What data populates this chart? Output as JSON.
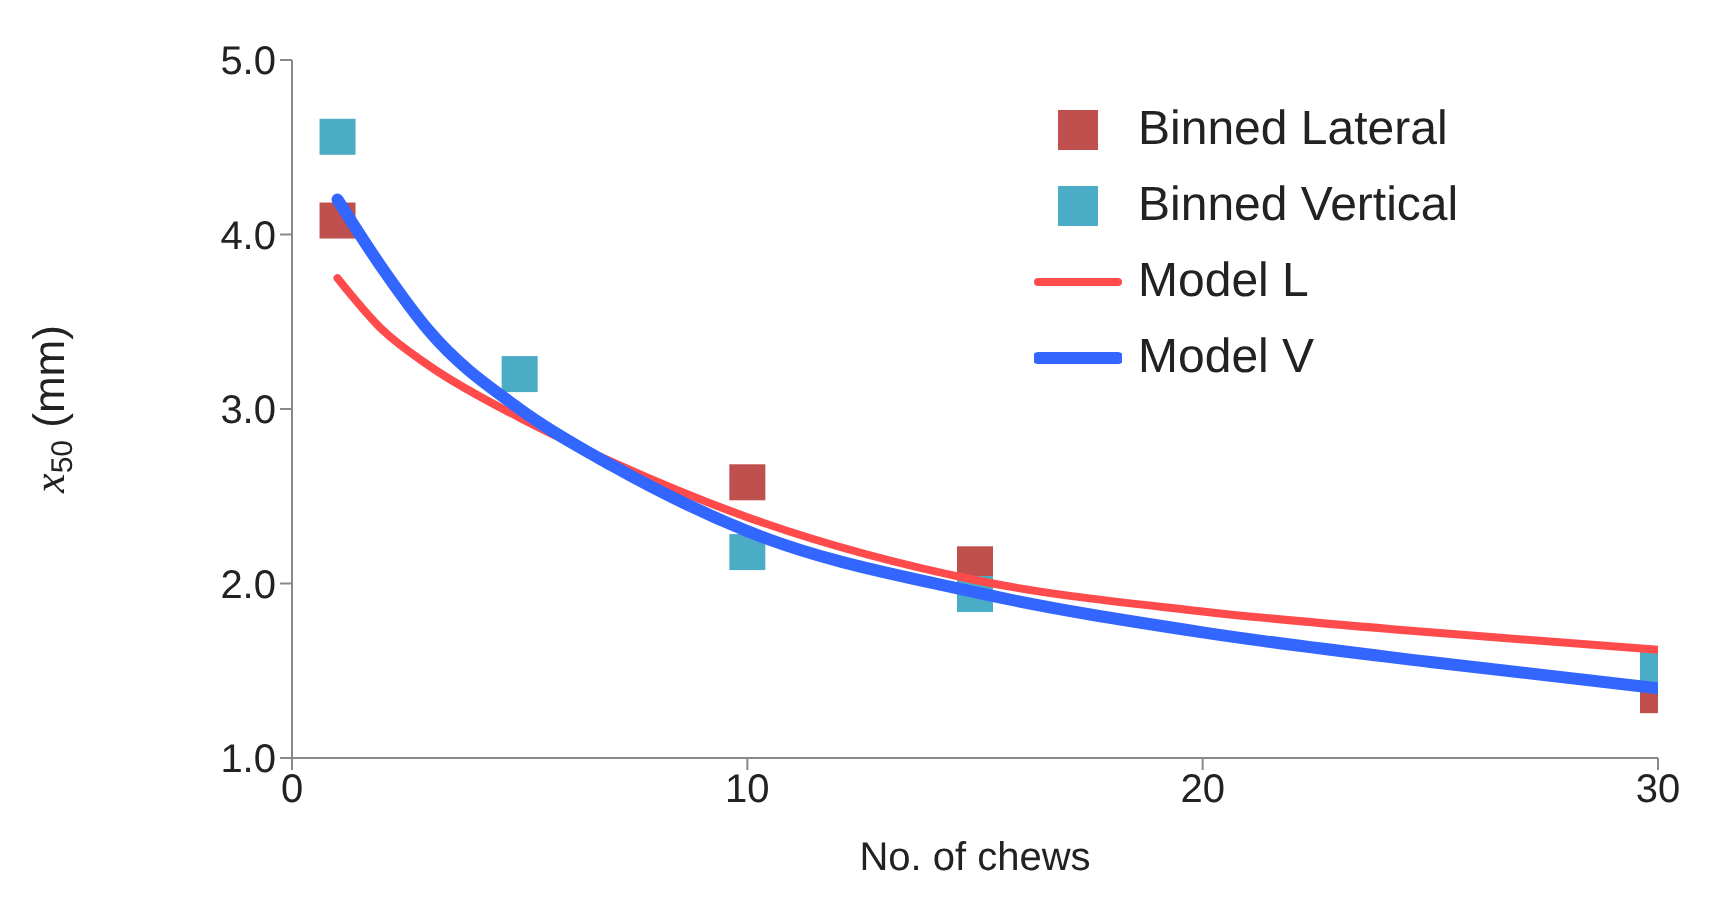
{
  "chart_data": {
    "type": "scatter",
    "xlabel": "No. of chews",
    "ylabel": "x$_{50}$ (mm)",
    "xlim": [
      0,
      30
    ],
    "xticks": [
      0,
      10,
      20,
      30
    ],
    "ylim": [
      1,
      5
    ],
    "yticks": [
      {
        "value": 1,
        "label": "1.0"
      },
      {
        "value": 2,
        "label": "2.0"
      },
      {
        "value": 3,
        "label": "3.0"
      },
      {
        "value": 4,
        "label": "4.0"
      },
      {
        "value": 5,
        "label": "5.0"
      }
    ],
    "grid": false,
    "legend": "top right",
    "series": [
      {
        "name": "Binned Lateral",
        "marker": "square",
        "color": "#c0504d",
        "x": [
          1,
          10,
          15,
          30
        ],
        "values": [
          4.08,
          2.58,
          2.11,
          1.36
        ]
      },
      {
        "name": "Binned Vertical",
        "marker": "square",
        "color": "#4bacc6",
        "x": [
          1,
          5,
          10,
          15,
          30
        ],
        "values": [
          4.56,
          3.2,
          2.18,
          1.94,
          1.52
        ]
      },
      {
        "name": "Model L",
        "type": "line",
        "marker": "none",
        "color": "#ff4b4b",
        "x": [
          1,
          2,
          3,
          5,
          7,
          10,
          15,
          20,
          25,
          30
        ],
        "values": [
          3.75,
          3.45,
          3.25,
          2.95,
          2.7,
          2.38,
          2.02,
          1.84,
          1.72,
          1.62
        ]
      },
      {
        "name": "Model V",
        "type": "line",
        "marker": "none",
        "color": "#3366ff",
        "x": [
          1,
          2,
          3,
          5,
          7,
          10,
          15,
          20,
          25,
          30
        ],
        "values": [
          4.2,
          3.8,
          3.45,
          3.0,
          2.68,
          2.3,
          1.95,
          1.72,
          1.55,
          1.4
        ]
      }
    ]
  }
}
